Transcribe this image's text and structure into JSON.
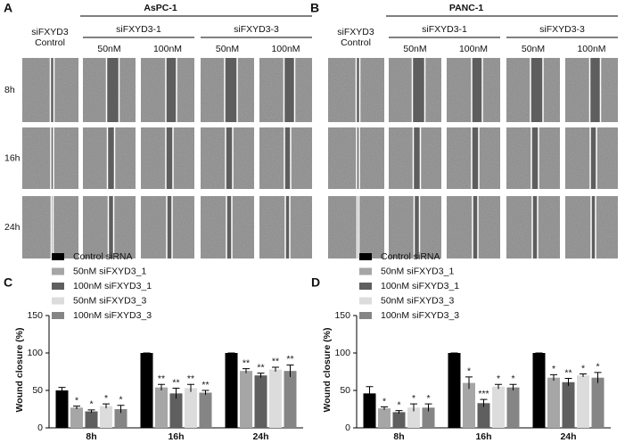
{
  "panel_a": {
    "letter": "A",
    "cell_line": "AsPC-1",
    "control_label": [
      "siFXYD3",
      "Control"
    ],
    "groups": [
      {
        "name": "siFXYD3-1",
        "doses": [
          "50nM",
          "100nM"
        ]
      },
      {
        "name": "siFXYD3-3",
        "doses": [
          "50nM",
          "100nM"
        ]
      }
    ],
    "time_points": [
      "8h",
      "16h",
      "24h"
    ]
  },
  "panel_b": {
    "letter": "B",
    "cell_line": "PANC-1",
    "control_label": [
      "siFXYD3",
      "Control"
    ],
    "groups": [
      {
        "name": "siFXYD3-1",
        "doses": [
          "50nM",
          "100nM"
        ]
      },
      {
        "name": "siFXYD3-3",
        "doses": [
          "50nM",
          "100nM"
        ]
      }
    ]
  },
  "chart_data": [
    {
      "type": "bar",
      "letter": "C",
      "ylabel": "Wound closure (%)",
      "categories": [
        "8h",
        "16h",
        "24h"
      ],
      "ylim": [
        0,
        150
      ],
      "yticks": [
        0,
        50,
        100,
        150
      ],
      "series": [
        {
          "name": "Control siRNA",
          "color": "#000000",
          "values": [
            50,
            100,
            100
          ],
          "errors": [
            4,
            0,
            0
          ]
        },
        {
          "name": "50nM siFXYD3_1",
          "color": "#a6a6a6",
          "values": [
            27,
            54,
            76
          ],
          "errors": [
            2,
            4,
            3
          ],
          "stars": [
            "*",
            "**",
            "**"
          ]
        },
        {
          "name": "100nM siFXYD3_1",
          "color": "#5f5f5f",
          "values": [
            22,
            46,
            70
          ],
          "errors": [
            2,
            7,
            3
          ],
          "stars": [
            "*",
            "**",
            "**"
          ]
        },
        {
          "name": "50nM siFXYD3_3",
          "color": "#dcdcdc",
          "values": [
            29,
            53,
            78
          ],
          "errors": [
            3,
            5,
            3
          ],
          "stars": [
            "*",
            "**",
            "**"
          ]
        },
        {
          "name": "100nM siFXYD3_3",
          "color": "#858585",
          "values": [
            25,
            47,
            76
          ],
          "errors": [
            5,
            3,
            8
          ],
          "stars": [
            "*",
            "**",
            "**"
          ]
        }
      ]
    },
    {
      "type": "bar",
      "letter": "D",
      "ylabel": "Wound closure (%)",
      "categories": [
        "8h",
        "16h",
        "24h"
      ],
      "ylim": [
        0,
        150
      ],
      "yticks": [
        0,
        50,
        100,
        150
      ],
      "series": [
        {
          "name": "Control siRNA",
          "color": "#000000",
          "values": [
            46,
            100,
            100
          ],
          "errors": [
            9,
            0,
            0
          ]
        },
        {
          "name": "50nM siFXYD3_1",
          "color": "#a6a6a6",
          "values": [
            26,
            60,
            67
          ],
          "errors": [
            2,
            8,
            4
          ],
          "stars": [
            "*",
            "*",
            "*"
          ]
        },
        {
          "name": "100nM siFXYD3_1",
          "color": "#5f5f5f",
          "values": [
            21,
            33,
            61
          ],
          "errors": [
            2,
            5,
            5
          ],
          "stars": [
            "*",
            "***",
            "**"
          ]
        },
        {
          "name": "50nM siFXYD3_3",
          "color": "#dcdcdc",
          "values": [
            27,
            55,
            70
          ],
          "errors": [
            5,
            3,
            2
          ],
          "stars": [
            "*",
            "*",
            "*"
          ]
        },
        {
          "name": "100nM siFXYD3_3",
          "color": "#858585",
          "values": [
            27,
            54,
            67
          ],
          "errors": [
            5,
            4,
            7
          ],
          "stars": [
            "*",
            "*",
            "*"
          ]
        }
      ]
    }
  ]
}
